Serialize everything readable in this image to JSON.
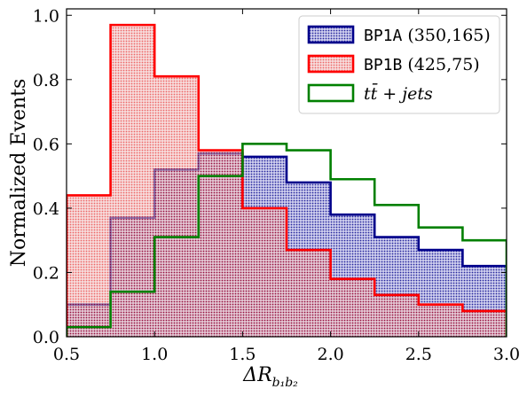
{
  "chart_data": {
    "type": "histogram",
    "xlabel_main": "ΔR",
    "xlabel_sub": "b₁b₂",
    "ylabel": "Normalized Events",
    "xlim": [
      0.5,
      3.0
    ],
    "ylim": [
      0.0,
      1.02
    ],
    "xticks": [
      "0.5",
      "1.0",
      "1.5",
      "2.0",
      "2.5",
      "3.0"
    ],
    "yticks": [
      "0.0",
      "0.2",
      "0.4",
      "0.6",
      "0.8",
      "1.0"
    ],
    "bin_edges": [
      0.5,
      0.75,
      1.0,
      1.25,
      1.5,
      1.75,
      2.0,
      2.25,
      2.5,
      2.75,
      3.0
    ],
    "legend_position": "top-right",
    "series": [
      {
        "name_mono": "BP1A",
        "name_rest": " (350,165)",
        "edge_color": "#00008b",
        "fill": "dotted",
        "values": [
          0.1,
          0.37,
          0.52,
          0.57,
          0.56,
          0.48,
          0.38,
          0.31,
          0.27,
          0.22
        ]
      },
      {
        "name_mono": "BP1B",
        "name_rest": " (425,75)",
        "edge_color": "#ff0000",
        "fill": "dotted",
        "values": [
          0.44,
          0.97,
          0.81,
          0.58,
          0.4,
          0.27,
          0.18,
          0.13,
          0.1,
          0.08
        ]
      },
      {
        "name_mono": "",
        "name_rest": "tt̄ + jets",
        "edge_color": "#008000",
        "fill": "none",
        "values": [
          0.03,
          0.14,
          0.31,
          0.5,
          0.6,
          0.58,
          0.49,
          0.41,
          0.34,
          0.3
        ]
      }
    ]
  }
}
